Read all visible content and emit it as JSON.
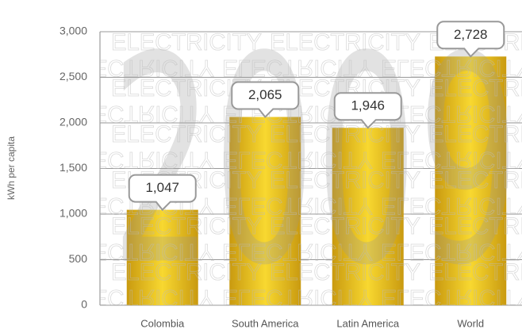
{
  "chart_data": {
    "type": "bar",
    "y_axis_label": "kWh per capita",
    "categories": [
      "Colombia",
      "South America",
      "Latin America",
      "World"
    ],
    "values": [
      1047,
      2065,
      1946,
      2728
    ],
    "value_labels": [
      "1,047",
      "2,065",
      "1,946",
      "2,728"
    ],
    "color": "#e8b820",
    "ylim": [
      0,
      3000
    ],
    "yticks": [
      0,
      {
        "value": 500,
        "label": "500"
      },
      {
        "value": 1000,
        "label": "1,000"
      },
      {
        "value": 1500,
        "label": "1,500"
      },
      {
        "value": 2000,
        "label": "2,000"
      },
      {
        "value": 2500,
        "label": "2,500"
      },
      {
        "value": 3000,
        "label": "3,000"
      }
    ],
    "grid": true,
    "watermark_text": "ELECTRICITY",
    "watermark_year": "2009"
  }
}
